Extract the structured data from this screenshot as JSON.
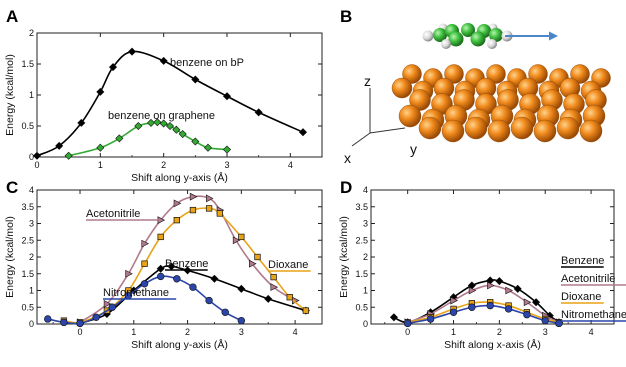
{
  "panels": [
    {
      "letter": "A"
    },
    {
      "letter": "B"
    },
    {
      "letter": "C"
    },
    {
      "letter": "D"
    }
  ],
  "colors": {
    "benzene": "#000000",
    "graphene": "#33aa33",
    "acetonitrile": "#b07a8c",
    "dioxane": "#e8a317",
    "nitromethane": "#2b45a8",
    "atom_orange": "#e87e12",
    "arrow_blue": "#4a86c8",
    "molecule_green": "#3fbf3f"
  },
  "structure": {
    "axes": {
      "z": "z",
      "x": "x",
      "y": "y"
    }
  },
  "chart_data": [
    {
      "panel": "A",
      "type": "line",
      "xlabel": "Shift along y-axis (Å)",
      "ylabel": "Energy (kcal/mol)",
      "xlim": [
        0,
        4.5
      ],
      "ylim": [
        0,
        2
      ],
      "xticks": [
        "0",
        "1",
        "2",
        "3",
        "4"
      ],
      "yticks": [
        "0",
        "0.5",
        "1",
        "1.5",
        "2"
      ],
      "grid": false,
      "series": [
        {
          "name": "benzene on bP",
          "color": "#000000",
          "marker": "diamond",
          "x": [
            0,
            0.35,
            0.7,
            1.0,
            1.2,
            1.5,
            2.0,
            2.5,
            3.0,
            3.5,
            4.2
          ],
          "y": [
            0.02,
            0.18,
            0.55,
            1.05,
            1.45,
            1.7,
            1.55,
            1.25,
            0.98,
            0.72,
            0.4
          ]
        },
        {
          "name": "benzene on graphene",
          "color": "#33aa33",
          "marker": "diamond",
          "x": [
            0.5,
            1.0,
            1.3,
            1.6,
            1.8,
            1.9,
            2.0,
            2.1,
            2.2,
            2.3,
            2.5,
            2.7,
            3.0
          ],
          "y": [
            0.02,
            0.15,
            0.3,
            0.5,
            0.55,
            0.56,
            0.54,
            0.5,
            0.44,
            0.37,
            0.25,
            0.15,
            0.12
          ]
        }
      ]
    },
    {
      "panel": "C",
      "type": "line",
      "xlabel": "Shift along y-axis (Å)",
      "ylabel": "Energy (kcal/mol)",
      "xlim": [
        -0.8,
        4.5
      ],
      "ylim": [
        0,
        4
      ],
      "xticks": [
        "0",
        "1",
        "2",
        "3",
        "4"
      ],
      "yticks": [
        "0",
        "0.5",
        "1",
        "1.5",
        "2",
        "2.5",
        "3",
        "3.5",
        "4"
      ],
      "grid": false,
      "series": [
        {
          "name": "Benzene",
          "color": "#000000",
          "marker": "diamond",
          "x": [
            0,
            0.5,
            1.0,
            1.5,
            1.7,
            2.0,
            2.5,
            3.0,
            3.5,
            4.2
          ],
          "y": [
            0.02,
            0.3,
            1.0,
            1.65,
            1.72,
            1.6,
            1.35,
            1.05,
            0.75,
            0.4
          ]
        },
        {
          "name": "Acetonitrile",
          "color": "#b07a8c",
          "marker": "triangle",
          "x": [
            0,
            0.5,
            0.9,
            1.2,
            1.5,
            1.8,
            2.1,
            2.4,
            2.6,
            2.9,
            3.2,
            3.6,
            4.0
          ],
          "y": [
            0.05,
            0.6,
            1.5,
            2.4,
            3.1,
            3.6,
            3.8,
            3.75,
            3.4,
            2.5,
            1.8,
            1.1,
            0.7
          ]
        },
        {
          "name": "Dioxane",
          "color": "#e8a317",
          "marker": "square",
          "x": [
            -0.3,
            0,
            0.5,
            0.9,
            1.2,
            1.5,
            1.8,
            2.1,
            2.4,
            2.6,
            3.0,
            3.3,
            3.6,
            3.9,
            4.2
          ],
          "y": [
            0.1,
            0.05,
            0.4,
            1.0,
            1.8,
            2.6,
            3.1,
            3.4,
            3.45,
            3.3,
            2.6,
            2.0,
            1.4,
            0.8,
            0.4
          ]
        },
        {
          "name": "Nitromethane",
          "color": "#2b45a8",
          "marker": "circle",
          "x": [
            -0.6,
            -0.3,
            0,
            0.3,
            0.6,
            0.9,
            1.2,
            1.5,
            1.8,
            2.1,
            2.4,
            2.7,
            3.0
          ],
          "y": [
            0.15,
            0.05,
            0.02,
            0.2,
            0.5,
            0.85,
            1.2,
            1.42,
            1.35,
            1.1,
            0.7,
            0.35,
            0.1
          ]
        }
      ],
      "annotations": [
        "Acetonitrile",
        "Benzene",
        "Dioxane",
        "Nitromethane"
      ]
    },
    {
      "panel": "D",
      "type": "line",
      "xlabel": "Shift along x-axis (Å)",
      "ylabel": "Energy (kcal/mol)",
      "xlim": [
        -0.8,
        4.5
      ],
      "ylim": [
        0,
        4
      ],
      "xticks": [
        "0",
        "1",
        "2",
        "3",
        "4"
      ],
      "yticks": [
        "0",
        "0.5",
        "1",
        "1.5",
        "2",
        "2.5",
        "3",
        "3.5",
        "4"
      ],
      "grid": false,
      "series": [
        {
          "name": "Benzene",
          "color": "#000000",
          "marker": "diamond",
          "x": [
            -0.3,
            0,
            0.5,
            1.0,
            1.4,
            1.8,
            2.0,
            2.4,
            2.8,
            3.1,
            3.3
          ],
          "y": [
            0.2,
            0.05,
            0.35,
            0.8,
            1.15,
            1.3,
            1.28,
            1.05,
            0.65,
            0.25,
            0.05
          ]
        },
        {
          "name": "Acetonitrile",
          "color": "#b07a8c",
          "marker": "triangle",
          "x": [
            0,
            0.5,
            1.0,
            1.4,
            1.8,
            2.2,
            2.6,
            3.0,
            3.3
          ],
          "y": [
            0.05,
            0.3,
            0.7,
            1.0,
            1.15,
            1.0,
            0.65,
            0.25,
            0.05
          ]
        },
        {
          "name": "Dioxane",
          "color": "#e8a317",
          "marker": "square",
          "x": [
            0,
            0.5,
            1.0,
            1.4,
            1.8,
            2.2,
            2.6,
            3.0,
            3.3
          ],
          "y": [
            0.05,
            0.2,
            0.45,
            0.62,
            0.65,
            0.55,
            0.35,
            0.15,
            0.05
          ]
        },
        {
          "name": "Nitromethane",
          "color": "#2b45a8",
          "marker": "circle",
          "x": [
            0,
            0.5,
            1.0,
            1.4,
            1.8,
            2.2,
            2.6,
            3.0,
            3.3
          ],
          "y": [
            0.02,
            0.15,
            0.35,
            0.5,
            0.55,
            0.45,
            0.28,
            0.1,
            0.02
          ]
        }
      ],
      "legend_entries": [
        "Benzene",
        "Acetonitrile",
        "Dioxane",
        "Nitromethane"
      ],
      "legend_position": "right"
    }
  ]
}
